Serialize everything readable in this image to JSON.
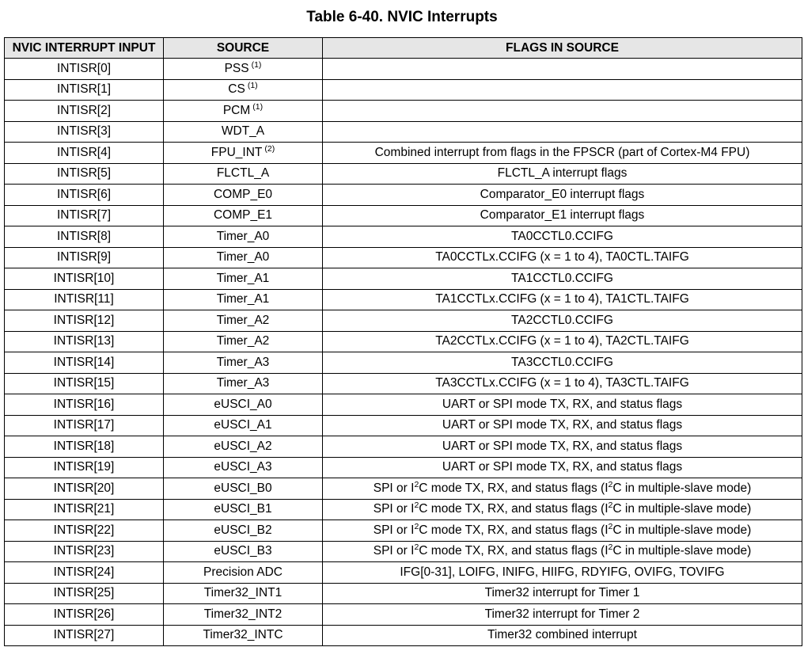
{
  "title": "Table 6-40. NVIC Interrupts",
  "headers": [
    "NVIC INTERRUPT INPUT",
    "SOURCE",
    "FLAGS IN SOURCE"
  ],
  "rows": [
    {
      "input": "INTISR[0]",
      "source": "PSS",
      "note": "(1)",
      "flags": ""
    },
    {
      "input": "INTISR[1]",
      "source": "CS",
      "note": "(1)",
      "flags": ""
    },
    {
      "input": "INTISR[2]",
      "source": "PCM",
      "note": "(1)",
      "flags": ""
    },
    {
      "input": "INTISR[3]",
      "source": "WDT_A",
      "note": "",
      "flags": ""
    },
    {
      "input": "INTISR[4]",
      "source": "FPU_INT",
      "note": "(2)",
      "flags": "Combined interrupt from flags in the FPSCR (part of Cortex-M4 FPU)"
    },
    {
      "input": "INTISR[5]",
      "source": "FLCTL_A",
      "note": "",
      "flags": "FLCTL_A interrupt flags"
    },
    {
      "input": "INTISR[6]",
      "source": "COMP_E0",
      "note": "",
      "flags": "Comparator_E0 interrupt flags"
    },
    {
      "input": "INTISR[7]",
      "source": "COMP_E1",
      "note": "",
      "flags": "Comparator_E1 interrupt flags"
    },
    {
      "input": "INTISR[8]",
      "source": "Timer_A0",
      "note": "",
      "flags": "TA0CCTL0.CCIFG"
    },
    {
      "input": "INTISR[9]",
      "source": "Timer_A0",
      "note": "",
      "flags": "TA0CCTLx.CCIFG (x = 1 to 4), TA0CTL.TAIFG"
    },
    {
      "input": "INTISR[10]",
      "source": "Timer_A1",
      "note": "",
      "flags": "TA1CCTL0.CCIFG"
    },
    {
      "input": "INTISR[11]",
      "source": "Timer_A1",
      "note": "",
      "flags": "TA1CCTLx.CCIFG (x = 1 to 4), TA1CTL.TAIFG"
    },
    {
      "input": "INTISR[12]",
      "source": "Timer_A2",
      "note": "",
      "flags": "TA2CCTL0.CCIFG"
    },
    {
      "input": "INTISR[13]",
      "source": "Timer_A2",
      "note": "",
      "flags": "TA2CCTLx.CCIFG (x = 1 to 4), TA2CTL.TAIFG"
    },
    {
      "input": "INTISR[14]",
      "source": "Timer_A3",
      "note": "",
      "flags": "TA3CCTL0.CCIFG"
    },
    {
      "input": "INTISR[15]",
      "source": "Timer_A3",
      "note": "",
      "flags": "TA3CCTLx.CCIFG (x = 1 to 4), TA3CTL.TAIFG"
    },
    {
      "input": "INTISR[16]",
      "source": "eUSCI_A0",
      "note": "",
      "flags": "UART or SPI mode TX, RX, and status flags"
    },
    {
      "input": "INTISR[17]",
      "source": "eUSCI_A1",
      "note": "",
      "flags": "UART or SPI mode TX, RX, and status flags"
    },
    {
      "input": "INTISR[18]",
      "source": "eUSCI_A2",
      "note": "",
      "flags": "UART or SPI mode TX, RX, and status flags"
    },
    {
      "input": "INTISR[19]",
      "source": "eUSCI_A3",
      "note": "",
      "flags": "UART or SPI mode TX, RX, and status flags"
    },
    {
      "input": "INTISR[20]",
      "source": "eUSCI_B0",
      "note": "",
      "flags": "SPI or I2C mode TX, RX, and status flags (I2C in multiple-slave mode)"
    },
    {
      "input": "INTISR[21]",
      "source": "eUSCI_B1",
      "note": "",
      "flags": "SPI or I2C mode TX, RX, and status flags (I2C in multiple-slave mode)"
    },
    {
      "input": "INTISR[22]",
      "source": "eUSCI_B2",
      "note": "",
      "flags": "SPI or I2C mode TX, RX, and status flags (I2C in multiple-slave mode)"
    },
    {
      "input": "INTISR[23]",
      "source": "eUSCI_B3",
      "note": "",
      "flags": "SPI or I2C mode TX, RX, and status flags (I2C in multiple-slave mode)"
    },
    {
      "input": "INTISR[24]",
      "source": "Precision ADC",
      "note": "",
      "flags": "IFG[0-31], LOIFG, INIFG, HIIFG, RDYIFG, OVIFG, TOVIFG"
    },
    {
      "input": "INTISR[25]",
      "source": "Timer32_INT1",
      "note": "",
      "flags": "Timer32 interrupt for Timer 1"
    },
    {
      "input": "INTISR[26]",
      "source": "Timer32_INT2",
      "note": "",
      "flags": "Timer32 interrupt for Timer 2"
    },
    {
      "input": "INTISR[27]",
      "source": "Timer32_INTC",
      "note": "",
      "flags": "Timer32 combined interrupt"
    }
  ]
}
